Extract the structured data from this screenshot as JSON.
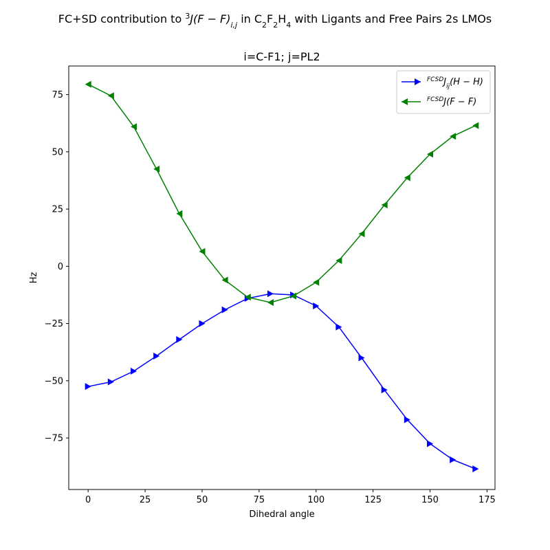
{
  "chart_data": {
    "type": "line",
    "suptitle": {
      "pre": "FC+SD contribution to ",
      "sup": "3",
      "j": "J",
      "paren": "(F − F)",
      "ij": "i,j",
      "mid": " in C",
      "s1": "2",
      "f": "F",
      "s2": "2",
      "h": "H",
      "s3": "4",
      "post": " with Ligants and Free Pairs 2s LMOs"
    },
    "title": "i=C-F1; j=PL2",
    "xlabel": "Dihedral angle",
    "ylabel": "Hz",
    "xlim": [
      -8.5,
      178.5
    ],
    "ylim": [
      -97.5,
      87.5
    ],
    "xticks": [
      0,
      25,
      50,
      75,
      100,
      125,
      150,
      175
    ],
    "yticks": [
      -75,
      -50,
      -25,
      0,
      25,
      50,
      75
    ],
    "tick_labels": {
      "x": [
        "0",
        "25",
        "50",
        "75",
        "100",
        "125",
        "150",
        "175"
      ],
      "y": [
        "−75",
        "−50",
        "−25",
        "0",
        "25",
        "50",
        "75"
      ]
    },
    "legend_position": "upper right",
    "grid": false,
    "x": [
      0,
      10,
      20,
      30,
      40,
      50,
      60,
      70,
      80,
      90,
      100,
      110,
      120,
      130,
      140,
      150,
      160,
      170
    ],
    "series": [
      {
        "label_sup": "FCSD",
        "label_main": "J",
        "label_sub": "ij",
        "label_rest": "(H − H)",
        "color": "#0000ff",
        "marker": "triangle-right",
        "values": [
          -52.5,
          -50.5,
          -45.8,
          -39.2,
          -32.0,
          -25.0,
          -19.0,
          -14.0,
          -12.0,
          -12.5,
          -17.3,
          -26.5,
          -40.0,
          -54.0,
          -67.0,
          -77.5,
          -84.5,
          -88.5
        ]
      },
      {
        "label_sup": "FCSD",
        "label_main": "J",
        "label_sub": "",
        "label_rest": "(F − F)",
        "color": "#008000",
        "marker": "triangle-left",
        "values": [
          79.5,
          74.5,
          61.0,
          42.5,
          23.0,
          6.5,
          -6.0,
          -13.5,
          -15.8,
          -13.0,
          -7.0,
          2.5,
          14.2,
          26.8,
          38.7,
          49.0,
          56.8,
          61.5
        ]
      }
    ]
  }
}
